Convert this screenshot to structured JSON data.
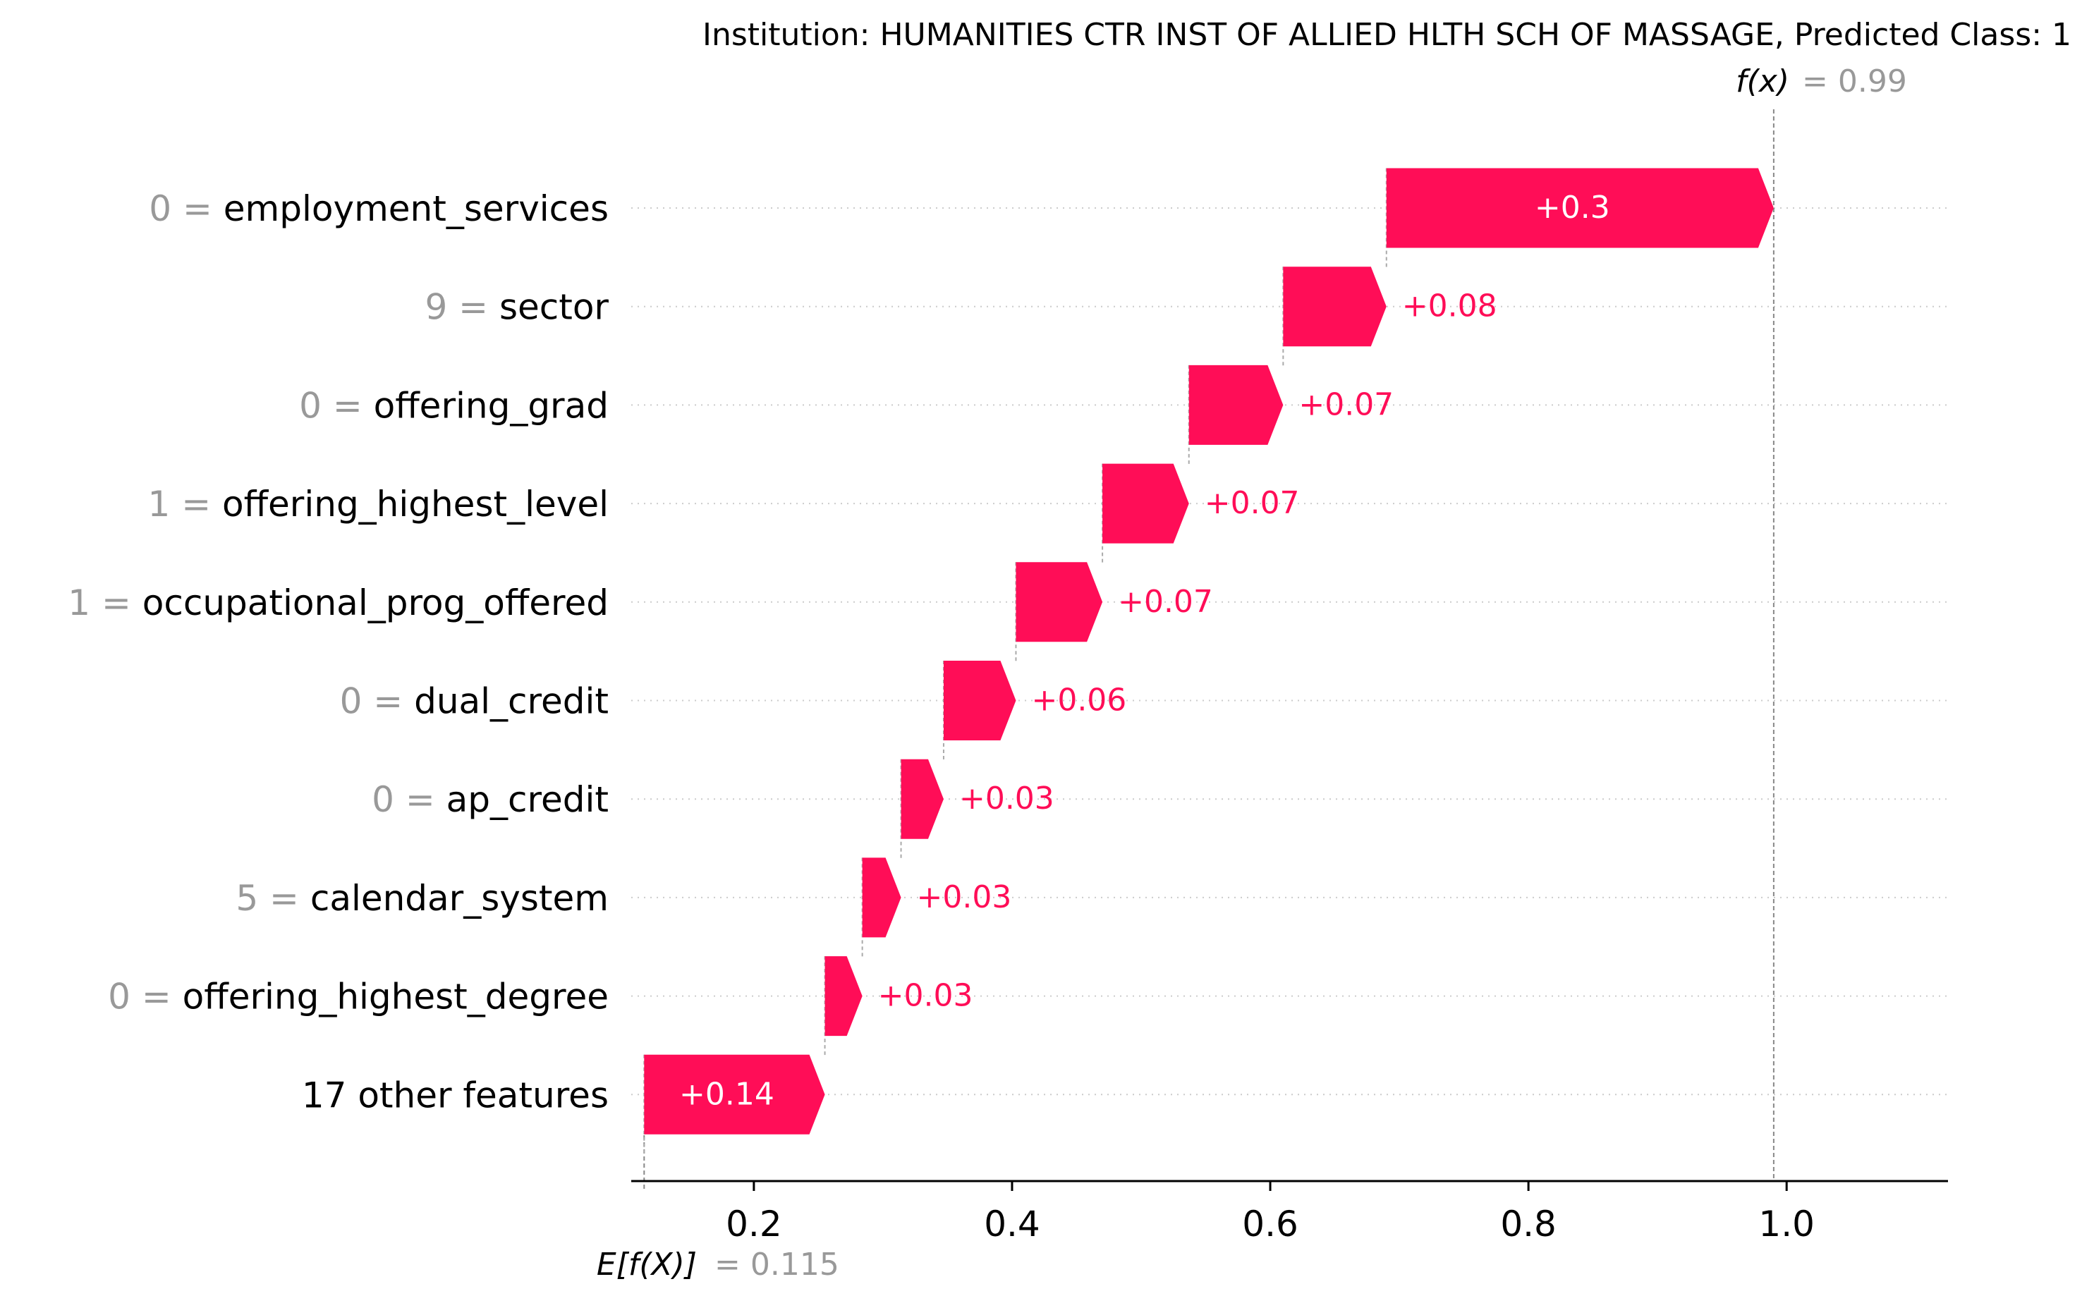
{
  "chart_data": {
    "type": "waterfall",
    "title": "Institution: HUMANITIES CTR INST OF ALLIED HLTH SCH OF MASSAGE, Predicted Class: 1",
    "fx_label": "f(x)",
    "fx_value_text": "= 0.99",
    "fx_value": 0.99,
    "base_label": "E[f(X)]",
    "base_value_text": "= 0.115",
    "base_value": 0.115,
    "xlim": [
      0.105,
      1.125
    ],
    "xticks": [
      0.2,
      0.4,
      0.6,
      0.8,
      1.0
    ],
    "xtick_labels": [
      "0.2",
      "0.4",
      "0.6",
      "0.8",
      "1.0"
    ],
    "colors": {
      "positive": "#ff0d57",
      "value_gray": "#999999",
      "grid": "#cccccc",
      "axis": "#000000"
    },
    "features": [
      {
        "value": "0",
        "name": "employment_services",
        "start": 0.69,
        "end": 0.99,
        "label": "+0.3",
        "inside": true
      },
      {
        "value": "9",
        "name": "sector",
        "start": 0.61,
        "end": 0.69,
        "label": "+0.08",
        "inside": false
      },
      {
        "value": "0",
        "name": "offering_grad",
        "start": 0.537,
        "end": 0.61,
        "label": "+0.07",
        "inside": false
      },
      {
        "value": "1",
        "name": "offering_highest_level",
        "start": 0.47,
        "end": 0.537,
        "label": "+0.07",
        "inside": false
      },
      {
        "value": "1",
        "name": "occupational_prog_offered",
        "start": 0.403,
        "end": 0.47,
        "label": "+0.07",
        "inside": false
      },
      {
        "value": "0",
        "name": "dual_credit",
        "start": 0.347,
        "end": 0.403,
        "label": "+0.06",
        "inside": false
      },
      {
        "value": "0",
        "name": "ap_credit",
        "start": 0.314,
        "end": 0.347,
        "label": "+0.03",
        "inside": false
      },
      {
        "value": "5",
        "name": "calendar_system",
        "start": 0.284,
        "end": 0.314,
        "label": "+0.03",
        "inside": false
      },
      {
        "value": "0",
        "name": "offering_highest_degree",
        "start": 0.255,
        "end": 0.284,
        "label": "+0.03",
        "inside": false
      },
      {
        "value": "",
        "name": "17 other features",
        "start": 0.115,
        "end": 0.255,
        "label": "+0.14",
        "inside": true
      }
    ]
  }
}
